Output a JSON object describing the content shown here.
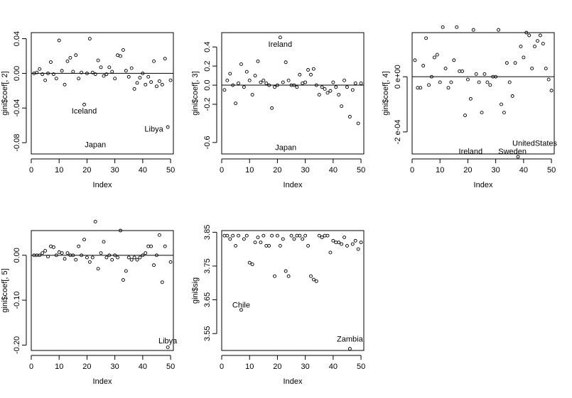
{
  "chart_data": [
    {
      "type": "scatter",
      "xlabel": "Index",
      "ylabel": "gini$coef[, 2]",
      "xlim": [
        0,
        51
      ],
      "ylim": [
        -0.093,
        0.047
      ],
      "xticks": [
        0,
        10,
        20,
        30,
        40,
        50
      ],
      "yticks": [
        0.04,
        0.0,
        -0.04,
        -0.08
      ],
      "ytick_labels": [
        "0.04",
        "0.00",
        "-0.04",
        "-0.08"
      ],
      "hline": 0,
      "x": [
        1,
        2,
        3,
        4,
        5,
        6,
        7,
        8,
        9,
        10,
        11,
        12,
        13,
        14,
        15,
        16,
        17,
        18,
        19,
        20,
        21,
        22,
        23,
        24,
        25,
        26,
        27,
        28,
        29,
        30,
        31,
        32,
        33,
        34,
        35,
        36,
        37,
        38,
        39,
        40,
        41,
        42,
        43,
        44,
        45,
        46,
        47,
        48,
        49,
        50
      ],
      "y": [
        0,
        0.001,
        0.005,
        -0.001,
        -0.008,
        0.0,
        0.013,
        -0.001,
        -0.006,
        0.038,
        0.003,
        -0.013,
        0.014,
        0.018,
        0.002,
        0.021,
        -0.006,
        0.001,
        -0.036,
        0.0,
        0.04,
        0.001,
        -0.001,
        0.015,
        0.007,
        -0.003,
        -0.001,
        0.007,
        0.002,
        -0.006,
        0.021,
        0.02,
        0.027,
        0.003,
        -0.004,
        0.006,
        -0.018,
        -0.011,
        -0.005,
        0.0,
        -0.013,
        -0.004,
        -0.01,
        0.014,
        -0.015,
        -0.009,
        -0.013,
        0.017,
        -0.062,
        -0.008
      ],
      "annotations": [
        {
          "text": "Iceland",
          "x": 19,
          "y": -0.043
        },
        {
          "text": "Japan",
          "x": 23,
          "y": -0.082
        },
        {
          "text": "Libya",
          "x": 44,
          "y": -0.064
        }
      ]
    },
    {
      "type": "scatter",
      "xlabel": "Index",
      "ylabel": "gini$coef[, 3]",
      "xlim": [
        0,
        51
      ],
      "ylim": [
        -0.72,
        0.55
      ],
      "xticks": [
        0,
        10,
        20,
        30,
        40,
        50
      ],
      "yticks": [
        0.4,
        0.2,
        0.0,
        -0.2,
        -0.6
      ],
      "ytick_labels": [
        "0.4",
        "0.2",
        "0.0",
        "-0.2",
        "-0.6"
      ],
      "hline": 0,
      "x": [
        1,
        2,
        3,
        4,
        5,
        6,
        7,
        8,
        9,
        10,
        11,
        12,
        13,
        14,
        15,
        16,
        17,
        18,
        19,
        20,
        21,
        22,
        23,
        24,
        25,
        26,
        27,
        28,
        29,
        30,
        31,
        32,
        33,
        34,
        35,
        36,
        37,
        38,
        39,
        40,
        41,
        42,
        43,
        44,
        45,
        46,
        47,
        48,
        49,
        50
      ],
      "y": [
        -0.05,
        0.05,
        0.12,
        0.0,
        -0.19,
        0.02,
        0.22,
        -0.02,
        0.14,
        0.05,
        -0.1,
        0.1,
        0.25,
        0.03,
        0.05,
        0.02,
        0.0,
        -0.24,
        -0.02,
        0.0,
        0.5,
        0.03,
        0.24,
        0.05,
        0.0,
        0.0,
        -0.02,
        0.11,
        0.02,
        0.03,
        0.16,
        0.11,
        0.17,
        0.0,
        -0.1,
        -0.02,
        -0.04,
        -0.08,
        -0.06,
        0.03,
        -0.02,
        -0.1,
        -0.22,
        0.05,
        -0.02,
        -0.33,
        -0.05,
        0.02,
        -0.4,
        0.02
      ],
      "annotations": [
        {
          "text": "Ireland",
          "x": 21,
          "y": 0.43
        },
        {
          "text": "Japan",
          "x": 23,
          "y": -0.65
        }
      ]
    },
    {
      "type": "scatter",
      "xlabel": "Index",
      "ylabel": "gini$coef[, 4]",
      "xlim": [
        0,
        51
      ],
      "ylim": [
        -0.00028,
        0.00016
      ],
      "xticks": [
        0,
        10,
        20,
        30,
        40,
        50
      ],
      "yticks": [
        0.0,
        -0.0002
      ],
      "ytick_labels": [
        "0 e+00",
        "-2 e-04"
      ],
      "hline": 0,
      "x": [
        1,
        2,
        3,
        4,
        5,
        6,
        7,
        8,
        9,
        10,
        11,
        12,
        13,
        14,
        15,
        16,
        17,
        18,
        19,
        20,
        21,
        22,
        23,
        24,
        25,
        26,
        27,
        28,
        29,
        30,
        31,
        32,
        33,
        34,
        35,
        36,
        37,
        38,
        39,
        40,
        41,
        42,
        43,
        44,
        45,
        46,
        47,
        48,
        49,
        50
      ],
      "y": [
        6e-05,
        -4e-05,
        -4e-05,
        4e-05,
        0.00014,
        -3e-05,
        0.0,
        7e-05,
        8e-05,
        -2e-05,
        0.00018,
        3e-05,
        -4e-05,
        -2e-05,
        6e-05,
        0.00018,
        2e-05,
        2e-05,
        -0.00014,
        -1e-05,
        -8e-05,
        0.00017,
        1e-05,
        -2e-05,
        -0.00013,
        1e-05,
        -2e-05,
        -3e-05,
        0.0,
        0.0,
        0.00017,
        -0.0001,
        -0.00013,
        5e-05,
        -2e-05,
        -7e-05,
        5e-05,
        -0.00029,
        0.00011,
        7e-05,
        0.00016,
        0.00015,
        3e-05,
        0.00011,
        0.00013,
        0.00015,
        0.00012,
        3e-05,
        -1e-05,
        -5e-05
      ],
      "annotations": [
        {
          "text": "Ireland",
          "x": 21,
          "y": -0.00027
        },
        {
          "text": "Sweden",
          "x": 36,
          "y": -0.00027
        },
        {
          "text": "UnitedStates",
          "x": 44,
          "y": -0.00024
        }
      ]
    },
    {
      "type": "scatter",
      "xlabel": "Index",
      "ylabel": "gini$coef[, 5]",
      "xlim": [
        0,
        51
      ],
      "ylim": [
        -0.212,
        0.055
      ],
      "xticks": [
        0,
        10,
        20,
        30,
        40,
        50
      ],
      "yticks": [
        0.0,
        -0.1,
        -0.2
      ],
      "ytick_labels": [
        "0.00",
        "-0.10",
        "-0.20"
      ],
      "hline": 0,
      "x": [
        1,
        2,
        3,
        4,
        5,
        6,
        7,
        8,
        9,
        10,
        11,
        12,
        13,
        14,
        15,
        16,
        17,
        18,
        19,
        20,
        21,
        22,
        23,
        24,
        25,
        26,
        27,
        28,
        29,
        30,
        31,
        32,
        33,
        34,
        35,
        36,
        37,
        38,
        39,
        40,
        41,
        42,
        43,
        44,
        45,
        46,
        47,
        48,
        49,
        50
      ],
      "y": [
        0.0,
        0.0,
        0.0,
        0.005,
        0.01,
        -0.003,
        0.02,
        0.018,
        0.0,
        0.007,
        0.005,
        -0.008,
        0.005,
        0.0,
        0.0,
        -0.01,
        0.02,
        0.0,
        0.035,
        -0.005,
        -0.015,
        -0.005,
        0.075,
        -0.03,
        0.005,
        0.03,
        -0.005,
        0.0,
        -0.01,
        0.0,
        -0.005,
        0.055,
        -0.055,
        -0.035,
        -0.005,
        -0.01,
        -0.005,
        -0.01,
        -0.005,
        0.0,
        0.005,
        0.02,
        0.02,
        -0.022,
        0.0,
        0.045,
        -0.06,
        0.02,
        -0.205,
        -0.015
      ],
      "annotations": [
        {
          "text": "Libya",
          "x": 49,
          "y": -0.19
        }
      ]
    },
    {
      "type": "scatter",
      "xlabel": "Index",
      "ylabel": "gini$sig",
      "xlim": [
        0,
        51
      ],
      "ylim": [
        3.5,
        3.855
      ],
      "xticks": [
        0,
        10,
        20,
        30,
        40,
        50
      ],
      "yticks": [
        3.85,
        3.75,
        3.65,
        3.55
      ],
      "ytick_labels": [
        "3.85",
        "3.75",
        "3.65",
        "3.55"
      ],
      "x": [
        1,
        2,
        3,
        4,
        5,
        6,
        7,
        8,
        9,
        10,
        11,
        12,
        13,
        14,
        15,
        16,
        17,
        18,
        19,
        20,
        21,
        22,
        23,
        24,
        25,
        26,
        27,
        28,
        29,
        30,
        31,
        32,
        33,
        34,
        35,
        36,
        37,
        38,
        39,
        40,
        41,
        42,
        43,
        44,
        45,
        46,
        47,
        48,
        49,
        50
      ],
      "y": [
        3.84,
        3.84,
        3.83,
        3.84,
        3.81,
        3.84,
        3.62,
        3.83,
        3.84,
        3.76,
        3.755,
        3.82,
        3.835,
        3.82,
        3.84,
        3.81,
        3.81,
        3.84,
        3.72,
        3.84,
        3.81,
        3.83,
        3.735,
        3.72,
        3.84,
        3.83,
        3.84,
        3.84,
        3.83,
        3.84,
        3.81,
        3.72,
        3.71,
        3.705,
        3.84,
        3.835,
        3.84,
        3.84,
        3.79,
        3.825,
        3.82,
        3.82,
        3.815,
        3.835,
        3.81,
        3.505,
        3.815,
        3.825,
        3.8,
        3.82
      ],
      "annotations": [
        {
          "text": "Chile",
          "x": 7,
          "y": 3.635
        },
        {
          "text": "Zambia",
          "x": 46,
          "y": 3.535
        }
      ]
    }
  ]
}
